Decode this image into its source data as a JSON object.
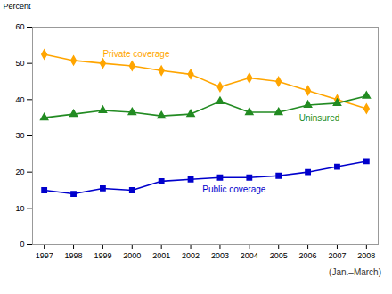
{
  "chart_data": {
    "type": "line",
    "x": [
      1997,
      1998,
      1999,
      2000,
      2001,
      2002,
      2003,
      2004,
      2005,
      2006,
      2007,
      2008
    ],
    "series": [
      {
        "name": "Private coverage",
        "color": "#FFA500",
        "marker": "diamond",
        "values": [
          52.5,
          50.8,
          50.0,
          49.3,
          48.0,
          47.0,
          43.5,
          46.0,
          45.0,
          42.5,
          40.0,
          37.5
        ]
      },
      {
        "name": "Uninsured",
        "color": "#228B22",
        "marker": "triangle",
        "values": [
          35.0,
          36.0,
          37.0,
          36.5,
          35.5,
          36.0,
          39.5,
          36.5,
          36.5,
          38.5,
          39.0,
          41.0
        ]
      },
      {
        "name": "Public coverage",
        "color": "#0000CC",
        "marker": "square",
        "values": [
          15.0,
          14.0,
          15.5,
          15.0,
          17.5,
          18.0,
          18.5,
          18.5,
          19.0,
          20.0,
          21.5,
          23.0
        ]
      }
    ],
    "ylabel": "Percent",
    "xlim": [
      1996.6,
      2008.4
    ],
    "xticks": [
      1997,
      1998,
      1999,
      2000,
      2001,
      2002,
      2003,
      2004,
      2005,
      2006,
      2007,
      2008
    ],
    "ylim": [
      0,
      60
    ],
    "yticks": [
      0,
      10,
      20,
      30,
      40,
      50,
      60
    ],
    "grid": false,
    "annotations": [
      {
        "text": "Private coverage",
        "x": 1999.0,
        "y": 52.5,
        "color": "#FFA500"
      },
      {
        "text": "Uninsured",
        "x": 2005.7,
        "y": 34.8,
        "color": "#228B22"
      },
      {
        "text": "Public coverage",
        "x": 2002.4,
        "y": 15.2,
        "color": "#0000CC"
      }
    ],
    "caption": "(Jan.–March)"
  }
}
